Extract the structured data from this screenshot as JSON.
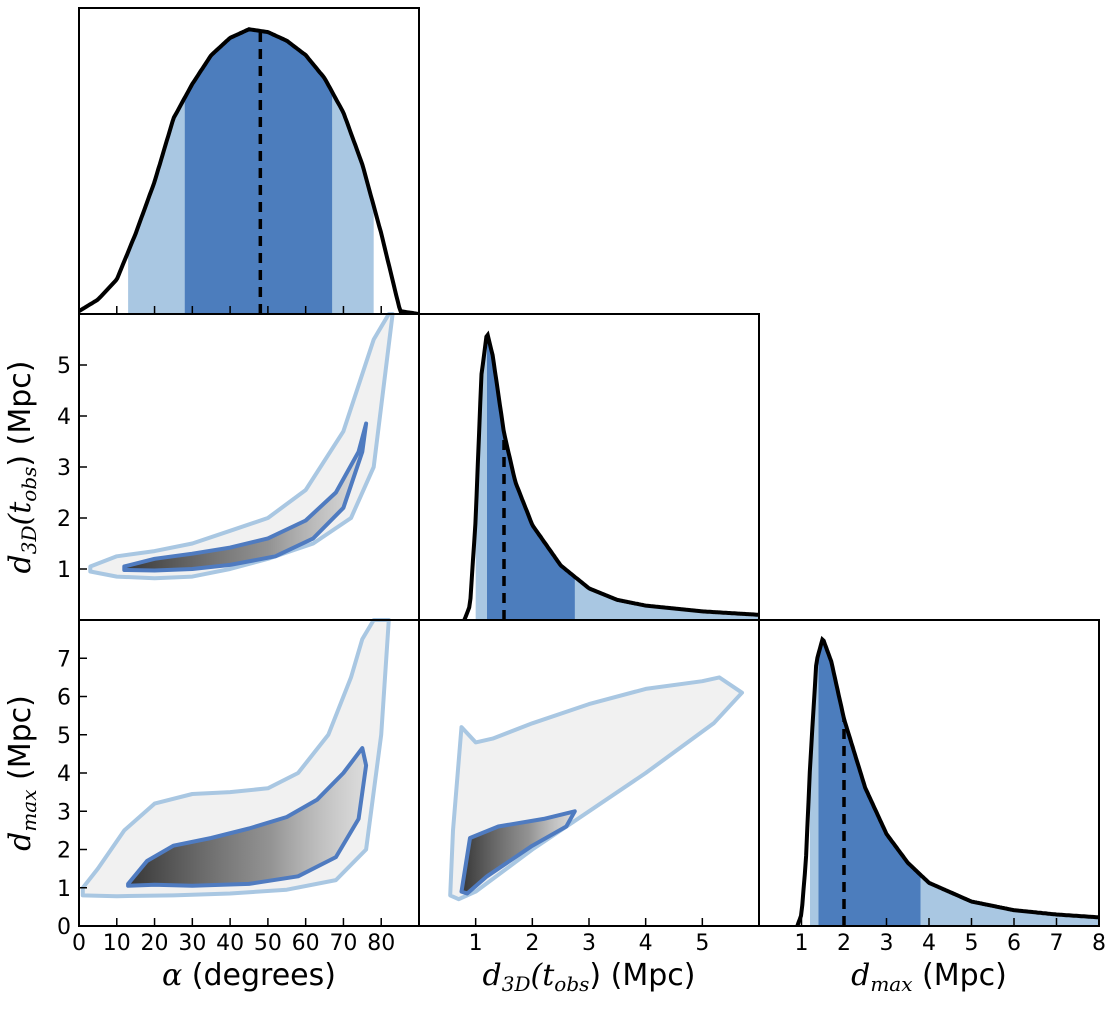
{
  "colors": {
    "dark_band": "#4c7dbd",
    "light_band": "#a9c7e2",
    "curve": "#000000",
    "contour_inner": "#4f7bc0",
    "contour_outer": "#a9c7e2"
  },
  "chart_data": [
    {
      "panel": "alpha-hist",
      "type": "area",
      "x": [
        0,
        5,
        10,
        15,
        20,
        25,
        30,
        35,
        40,
        45,
        50,
        55,
        60,
        65,
        70,
        75,
        80,
        85,
        90
      ],
      "y": [
        0.01,
        0.05,
        0.12,
        0.28,
        0.46,
        0.68,
        0.8,
        0.9,
        0.96,
        0.99,
        0.98,
        0.95,
        0.9,
        0.82,
        0.7,
        0.52,
        0.28,
        0.01,
        0.0
      ],
      "median": 48,
      "band_68": [
        28,
        67
      ],
      "band_95": [
        13,
        78
      ],
      "xlim": [
        0,
        90
      ],
      "xticks": []
    },
    {
      "panel": "d3d-hist",
      "type": "area",
      "x": [
        0.8,
        0.9,
        1.0,
        1.1,
        1.2,
        1.3,
        1.5,
        1.7,
        2.0,
        2.5,
        3.0,
        3.5,
        4.0,
        5.0,
        6.0
      ],
      "y": [
        0.0,
        0.05,
        0.35,
        0.85,
        1.0,
        0.92,
        0.65,
        0.48,
        0.33,
        0.19,
        0.11,
        0.07,
        0.05,
        0.03,
        0.018
      ],
      "median": 1.5,
      "band_68": [
        1.2,
        2.75
      ],
      "band_95": [
        1.0,
        6.0
      ],
      "xlim": [
        0,
        6
      ],
      "xticks": []
    },
    {
      "panel": "dmax-hist",
      "type": "area",
      "x": [
        0.9,
        1.0,
        1.1,
        1.2,
        1.35,
        1.5,
        1.7,
        2.0,
        2.5,
        3.0,
        3.5,
        4.0,
        5.0,
        6.0,
        7.0,
        8.0
      ],
      "y": [
        0.0,
        0.04,
        0.22,
        0.55,
        0.92,
        1.0,
        0.92,
        0.72,
        0.48,
        0.32,
        0.22,
        0.15,
        0.085,
        0.055,
        0.04,
        0.03
      ],
      "median": 2.0,
      "band_68": [
        1.4,
        3.8
      ],
      "band_95": [
        1.2,
        8.0
      ],
      "xlim": [
        0,
        8
      ],
      "xticks": [
        "1",
        "2",
        "3",
        "4",
        "5",
        "6",
        "7",
        "8"
      ],
      "xlabel_var": "d",
      "xlabel_sub": "max",
      "xlabel_unit": " (Mpc)"
    },
    {
      "panel": "d3d-vs-alpha",
      "type": "scatter",
      "xlim": [
        0,
        90
      ],
      "ylim": [
        0,
        6
      ],
      "yticks": [
        "1",
        "2",
        "3",
        "4",
        "5"
      ],
      "ylabel_var": "d",
      "ylabel_sub": "3D",
      "ylabel_arg": "(t",
      "ylabel_arg_sub": "obs",
      "ylabel_unit": ") (Mpc)",
      "contour_outer": [
        [
          3,
          1.05
        ],
        [
          10,
          1.25
        ],
        [
          20,
          1.35
        ],
        [
          30,
          1.5
        ],
        [
          40,
          1.75
        ],
        [
          50,
          2.0
        ],
        [
          60,
          2.55
        ],
        [
          70,
          3.7
        ],
        [
          78,
          5.5
        ],
        [
          82,
          6.0
        ],
        [
          83,
          6.0
        ],
        [
          78,
          3.0
        ],
        [
          72,
          2.0
        ],
        [
          62,
          1.5
        ],
        [
          50,
          1.2
        ],
        [
          40,
          1.0
        ],
        [
          30,
          0.85
        ],
        [
          20,
          0.82
        ],
        [
          10,
          0.85
        ],
        [
          3,
          0.95
        ]
      ],
      "contour_inner": [
        [
          12,
          1.05
        ],
        [
          20,
          1.2
        ],
        [
          30,
          1.3
        ],
        [
          40,
          1.42
        ],
        [
          50,
          1.6
        ],
        [
          60,
          1.95
        ],
        [
          68,
          2.5
        ],
        [
          74,
          3.3
        ],
        [
          76,
          3.85
        ],
        [
          75,
          3.3
        ],
        [
          70,
          2.2
        ],
        [
          62,
          1.6
        ],
        [
          52,
          1.25
        ],
        [
          40,
          1.08
        ],
        [
          30,
          1.0
        ],
        [
          20,
          0.97
        ],
        [
          12,
          0.98
        ]
      ]
    },
    {
      "panel": "dmax-vs-alpha",
      "type": "scatter",
      "xlim": [
        0,
        90
      ],
      "ylim": [
        0,
        8
      ],
      "xticks": [
        "0",
        "10",
        "20",
        "30",
        "40",
        "50",
        "60",
        "70",
        "80"
      ],
      "yticks": [
        "0",
        "1",
        "2",
        "3",
        "4",
        "5",
        "6",
        "7"
      ],
      "xlabel": "(degrees)",
      "xlabel_var": "α",
      "ylabel_var": "d",
      "ylabel_sub": "max",
      "ylabel_unit": " (Mpc)",
      "contour_outer": [
        [
          1,
          1.0
        ],
        [
          5,
          1.5
        ],
        [
          12,
          2.5
        ],
        [
          20,
          3.2
        ],
        [
          30,
          3.45
        ],
        [
          40,
          3.5
        ],
        [
          50,
          3.6
        ],
        [
          58,
          4.0
        ],
        [
          66,
          5.0
        ],
        [
          72,
          6.5
        ],
        [
          75,
          7.5
        ],
        [
          78,
          8.0
        ],
        [
          82,
          8.0
        ],
        [
          80,
          5.0
        ],
        [
          76,
          2.0
        ],
        [
          68,
          1.2
        ],
        [
          55,
          0.95
        ],
        [
          40,
          0.85
        ],
        [
          25,
          0.8
        ],
        [
          10,
          0.78
        ],
        [
          1,
          0.8
        ]
      ],
      "contour_inner": [
        [
          13,
          1.1
        ],
        [
          18,
          1.7
        ],
        [
          25,
          2.1
        ],
        [
          35,
          2.3
        ],
        [
          45,
          2.55
        ],
        [
          55,
          2.85
        ],
        [
          63,
          3.3
        ],
        [
          70,
          4.0
        ],
        [
          75,
          4.65
        ],
        [
          76,
          4.2
        ],
        [
          74,
          2.8
        ],
        [
          68,
          1.8
        ],
        [
          58,
          1.3
        ],
        [
          45,
          1.1
        ],
        [
          30,
          1.05
        ],
        [
          20,
          1.08
        ],
        [
          13,
          1.05
        ]
      ]
    },
    {
      "panel": "dmax-vs-d3d",
      "type": "scatter",
      "xlim": [
        0,
        6
      ],
      "ylim": [
        0,
        8
      ],
      "xticks": [
        "1",
        "2",
        "3",
        "4",
        "5"
      ],
      "xlabel_var": "d",
      "xlabel_sub": "3D",
      "xlabel_arg": "(t",
      "xlabel_arg_sub": "obs",
      "xlabel_unit": ") (Mpc)",
      "contour_outer": [
        [
          0.55,
          0.8
        ],
        [
          0.6,
          2.5
        ],
        [
          0.75,
          5.2
        ],
        [
          1.0,
          4.8
        ],
        [
          1.3,
          4.9
        ],
        [
          2.0,
          5.3
        ],
        [
          3.0,
          5.8
        ],
        [
          4.0,
          6.2
        ],
        [
          5.0,
          6.4
        ],
        [
          5.3,
          6.5
        ],
        [
          5.7,
          6.1
        ],
        [
          5.2,
          5.3
        ],
        [
          4.0,
          4.0
        ],
        [
          3.0,
          3.0
        ],
        [
          2.0,
          2.0
        ],
        [
          1.0,
          0.9
        ],
        [
          0.7,
          0.7
        ]
      ],
      "contour_inner": [
        [
          0.75,
          0.9
        ],
        [
          0.9,
          2.3
        ],
        [
          1.4,
          2.6
        ],
        [
          2.2,
          2.8
        ],
        [
          2.75,
          3.0
        ],
        [
          2.6,
          2.6
        ],
        [
          2.0,
          2.1
        ],
        [
          1.2,
          1.3
        ],
        [
          0.85,
          0.85
        ]
      ]
    }
  ]
}
